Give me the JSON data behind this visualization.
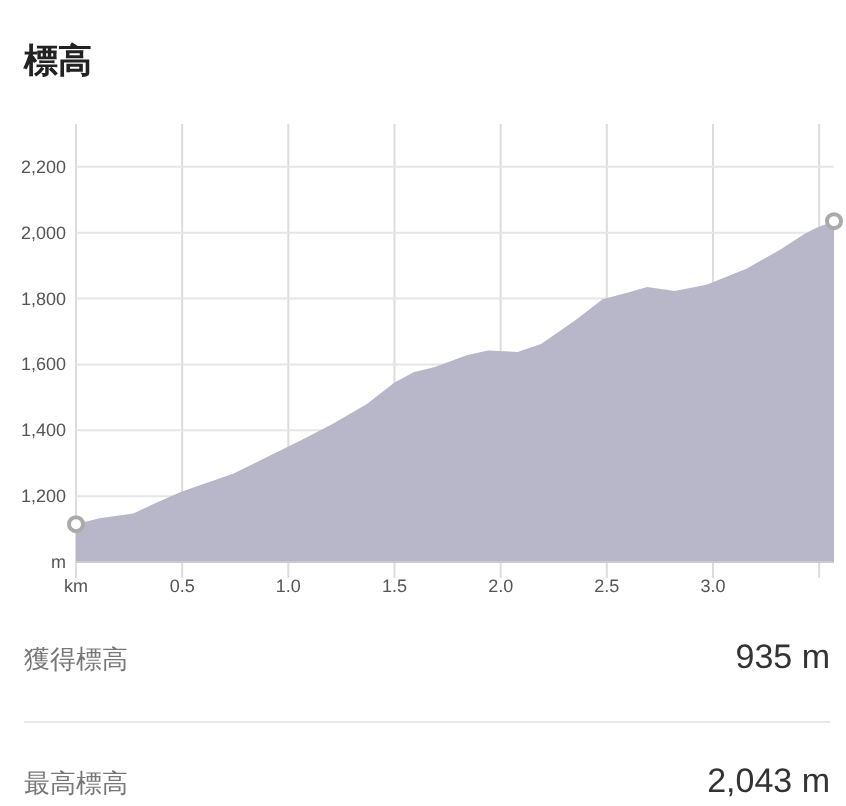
{
  "chart_data": {
    "type": "area",
    "title": "標高",
    "x": [
      0,
      0.11,
      0.27,
      0.37,
      0.49,
      0.58,
      0.74,
      0.9,
      1.06,
      1.21,
      1.37,
      1.5,
      1.59,
      1.69,
      1.84,
      1.94,
      2.08,
      2.19,
      2.35,
      2.48,
      2.6,
      2.69,
      2.82,
      2.97,
      3.16,
      3.32,
      3.43,
      3.49,
      3.57
    ],
    "series": [
      {
        "color": "#b8b7c9",
        "values": [
          1115,
          1133,
          1147,
          1178,
          1212,
          1232,
          1268,
          1319,
          1370,
          1420,
          1480,
          1545,
          1576,
          1592,
          1628,
          1642,
          1638,
          1662,
          1733,
          1798,
          1818,
          1835,
          1823,
          1842,
          1891,
          1950,
          1996,
          2016,
          2035
        ]
      }
    ],
    "xlim": [
      0,
      3.57
    ],
    "ylim": [
      1000,
      2330
    ],
    "xticks": [
      {
        "value": 0,
        "label": "km"
      },
      {
        "value": 0.5,
        "label": "0.5"
      },
      {
        "value": 1,
        "label": "1.0"
      },
      {
        "value": 1.5,
        "label": "1.5"
      },
      {
        "value": 2,
        "label": "2.0"
      },
      {
        "value": 2.5,
        "label": "2.5"
      },
      {
        "value": 3,
        "label": "3.0"
      },
      {
        "value": 3.5,
        "label": null
      }
    ],
    "yticks": [
      {
        "value": 1000,
        "label": "m"
      },
      {
        "value": 1200,
        "label": "1,200"
      },
      {
        "value": 1400,
        "label": "1,400"
      },
      {
        "value": 1600,
        "label": "1,600"
      },
      {
        "value": 1800,
        "label": "1,800"
      },
      {
        "value": 2000,
        "label": "2,000"
      },
      {
        "value": 2200,
        "label": "2,200"
      }
    ],
    "grid": true,
    "annotations": [
      "獲得標高",
      "935 m",
      "最高標高",
      "2,043 m"
    ]
  }
}
